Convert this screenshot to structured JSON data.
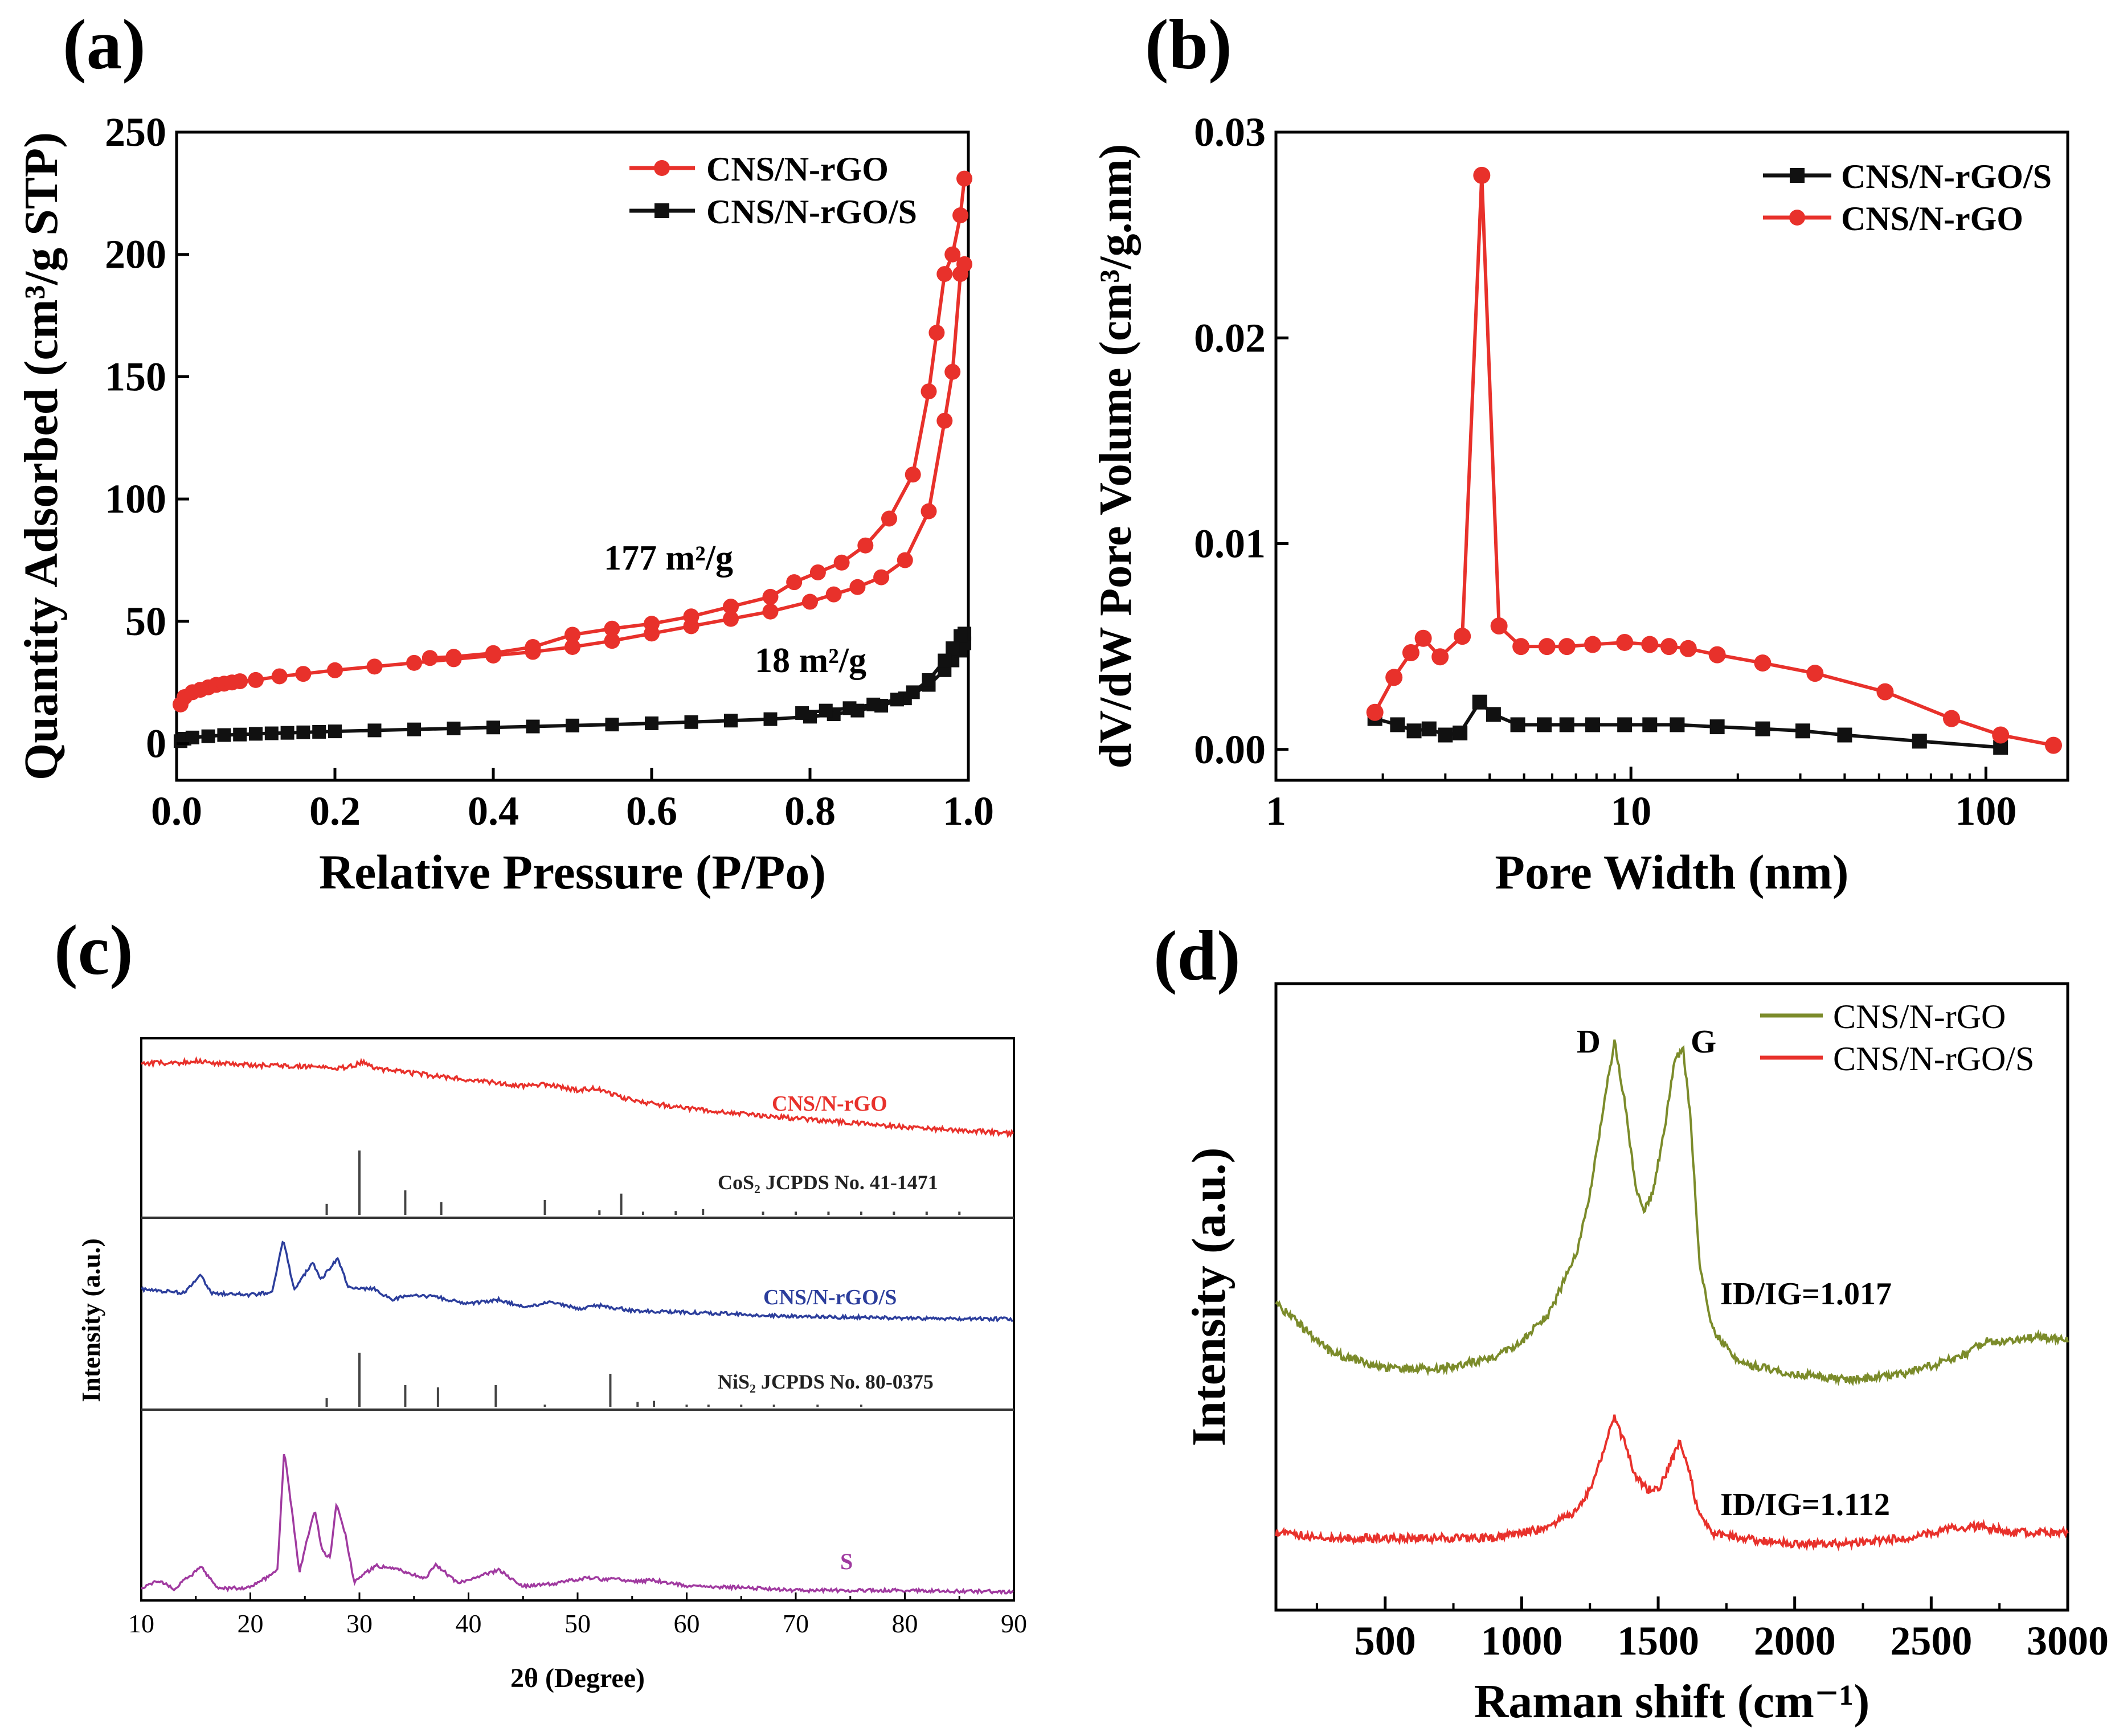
{
  "chart_data": [
    {
      "panel_label": "(a)",
      "type": "line",
      "xlabel": "Relative Pressure (P/Po)",
      "ylabel": "Quantity Adsorbed (cm³/g STP)",
      "xlim": [
        0,
        1.0
      ],
      "ylim": [
        -15,
        250
      ],
      "xticks": [
        "0.0",
        "0.2",
        "0.4",
        "0.6",
        "0.8",
        "1.0"
      ],
      "yticks": [
        "0",
        "50",
        "100",
        "150",
        "200",
        "250"
      ],
      "legend": [
        "CNS/N-rGO",
        "CNS/N-rGO/S"
      ],
      "annotations": [
        "177 m²/g",
        "18 m²/g"
      ],
      "series": [
        {
          "name": "CNS/N-rGO",
          "color": "#e8312b",
          "marker": "circle",
          "x": [
            0.005,
            0.01,
            0.02,
            0.03,
            0.04,
            0.05,
            0.06,
            0.07,
            0.08,
            0.1,
            0.13,
            0.16,
            0.2,
            0.25,
            0.3,
            0.35,
            0.4,
            0.45,
            0.5,
            0.55,
            0.6,
            0.65,
            0.7,
            0.75,
            0.8,
            0.83,
            0.86,
            0.89,
            0.92,
            0.95,
            0.97,
            0.98,
            0.99,
            0.995
          ],
          "y": [
            16,
            19,
            21,
            22,
            23,
            24,
            24.5,
            25,
            25.5,
            26,
            27.5,
            28.5,
            30,
            31.5,
            33,
            34.5,
            36,
            37.5,
            39.5,
            42,
            45,
            48,
            51,
            54,
            58,
            61,
            64,
            68,
            75,
            95,
            132,
            152,
            192,
            196
          ]
        },
        {
          "name": "CNS/N-rGO desorption",
          "color": "#e8312b",
          "marker": "circle",
          "x": [
            0.995,
            0.99,
            0.98,
            0.97,
            0.96,
            0.95,
            0.93,
            0.9,
            0.87,
            0.84,
            0.81,
            0.78,
            0.75,
            0.7,
            0.65,
            0.6,
            0.55,
            0.5,
            0.45,
            0.4,
            0.35,
            0.32
          ],
          "y": [
            231,
            216,
            200,
            192,
            168,
            144,
            110,
            92,
            81,
            74,
            70,
            66,
            60,
            56,
            52,
            49,
            47,
            44.5,
            39.5,
            37,
            35.5,
            35
          ]
        },
        {
          "name": "CNS/N-rGO/S",
          "color": "#111111",
          "marker": "square",
          "x": [
            0.005,
            0.01,
            0.02,
            0.04,
            0.06,
            0.08,
            0.1,
            0.12,
            0.14,
            0.16,
            0.18,
            0.2,
            0.25,
            0.3,
            0.35,
            0.4,
            0.45,
            0.5,
            0.55,
            0.6,
            0.65,
            0.7,
            0.75,
            0.8,
            0.83,
            0.86,
            0.89,
            0.92,
            0.95,
            0.97,
            0.98,
            0.99,
            0.995
          ],
          "y": [
            1,
            2,
            2.5,
            3,
            3.5,
            3.7,
            4,
            4.2,
            4.4,
            4.6,
            4.8,
            5,
            5.4,
            5.8,
            6.2,
            6.6,
            7,
            7.4,
            7.8,
            8.3,
            8.8,
            9.4,
            10,
            11,
            12,
            13.5,
            15.5,
            18.5,
            24,
            30,
            34,
            38,
            41
          ]
        },
        {
          "name": "CNS/N-rGO/S desorption",
          "color": "#111111",
          "marker": "square",
          "x": [
            0.995,
            0.99,
            0.98,
            0.97,
            0.95,
            0.93,
            0.91,
            0.88,
            0.85,
            0.82,
            0.79
          ],
          "y": [
            45,
            44,
            39,
            34,
            26,
            21,
            18,
            16,
            14.5,
            13.5,
            12.5
          ]
        }
      ]
    },
    {
      "panel_label": "(b)",
      "type": "line",
      "xscale": "log",
      "xlabel": "Pore Width (nm)",
      "ylabel": "dV/dW Pore Volume (cm³/g.nm)",
      "xlim": [
        1,
        170
      ],
      "ylim": [
        -0.0015,
        0.03
      ],
      "xticks": [
        "1",
        "10",
        "100"
      ],
      "yticks": [
        "0.00",
        "0.01",
        "0.02",
        "0.03"
      ],
      "legend": [
        "CNS/N-rGO/S",
        "CNS/N-rGO"
      ],
      "series": [
        {
          "name": "CNS/N-rGO/S",
          "color": "#111111",
          "marker": "square",
          "x": [
            1.9,
            2.2,
            2.45,
            2.7,
            3.0,
            3.3,
            3.75,
            4.1,
            4.8,
            5.7,
            6.6,
            7.8,
            9.6,
            11.3,
            13.5,
            17.5,
            23.5,
            30.5,
            40,
            65,
            110
          ],
          "y": [
            0.0015,
            0.0012,
            0.0009,
            0.001,
            0.0007,
            0.0008,
            0.0023,
            0.0017,
            0.0012,
            0.0012,
            0.0012,
            0.0012,
            0.0012,
            0.0012,
            0.0012,
            0.0011,
            0.001,
            0.0009,
            0.0007,
            0.0004,
            0.0001
          ]
        },
        {
          "name": "CNS/N-rGO",
          "color": "#e8312b",
          "marker": "circle",
          "x": [
            1.9,
            2.15,
            2.4,
            2.6,
            2.9,
            3.35,
            3.8,
            4.25,
            4.9,
            5.8,
            6.6,
            7.8,
            9.6,
            11.3,
            12.8,
            14.5,
            17.5,
            23.5,
            33,
            52,
            80,
            110,
            155
          ],
          "y": [
            0.0018,
            0.0035,
            0.0047,
            0.0054,
            0.0045,
            0.0055,
            0.0279,
            0.006,
            0.005,
            0.005,
            0.005,
            0.0051,
            0.0052,
            0.0051,
            0.005,
            0.0049,
            0.0046,
            0.0042,
            0.0037,
            0.0028,
            0.0015,
            0.0007,
            0.0002
          ]
        }
      ]
    },
    {
      "panel_label": "(c)",
      "type": "line",
      "xlabel": "2θ (Degree)",
      "ylabel": "Intensity (a.u.)",
      "xlim": [
        10,
        90
      ],
      "xticks": [
        "10",
        "20",
        "30",
        "40",
        "50",
        "60",
        "70",
        "80",
        "90"
      ],
      "series_labels": [
        {
          "text": "CNS/N-rGO",
          "color": "#e8312b"
        },
        {
          "text": "CoS₂ JCPDS No. 41-1471",
          "color": "#222222"
        },
        {
          "text": "CNS/N-rGO/S",
          "color": "#2c3e9c"
        },
        {
          "text": "NiS₂ JCPDS No. 80-0375",
          "color": "#222222"
        },
        {
          "text": "S",
          "color": "#a03aa0"
        }
      ],
      "series": [
        {
          "name": "CNS/N-rGO",
          "color": "#e8312b",
          "x": [
            10,
            13,
            15,
            17,
            20,
            23,
            26,
            28,
            29.5,
            30.2,
            31.5,
            35,
            40,
            45,
            47.5,
            50,
            51.5,
            52.5,
            55,
            60,
            70,
            80,
            90
          ],
          "y": [
            0.9,
            0.9,
            0.92,
            0.9,
            0.88,
            0.87,
            0.86,
            0.84,
            0.87,
            0.91,
            0.84,
            0.79,
            0.72,
            0.66,
            0.67,
            0.61,
            0.63,
            0.6,
            0.5,
            0.42,
            0.31,
            0.22,
            0.15
          ]
        },
        {
          "name": "CoS2 JCPDS No. 41-1471",
          "color": "#444444",
          "type": "stick",
          "x": [
            27,
            30,
            34.2,
            37.5,
            47,
            52,
            54,
            56,
            59,
            61.5,
            67,
            70,
            73,
            76,
            79,
            82,
            85
          ],
          "y": [
            0.17,
            1.0,
            0.38,
            0.2,
            0.23,
            0.07,
            0.33,
            0.05,
            0.06,
            0.09,
            0.05,
            0.05,
            0.05,
            0.05,
            0.05,
            0.05,
            0.05
          ]
        },
        {
          "name": "CNS/N-rGO/S",
          "color": "#2c3e9c",
          "x": [
            10,
            14,
            15.4,
            16.5,
            20,
            22,
            23,
            24,
            25.7,
            26.5,
            27.3,
            28,
            29,
            31.5,
            33,
            34.2,
            37,
            40,
            42.8,
            45,
            47.5,
            50,
            52,
            55,
            60,
            70,
            80,
            90
          ],
          "y": [
            0.48,
            0.44,
            0.62,
            0.44,
            0.42,
            0.45,
            1.0,
            0.48,
            0.75,
            0.58,
            0.7,
            0.8,
            0.5,
            0.48,
            0.36,
            0.42,
            0.4,
            0.33,
            0.37,
            0.3,
            0.34,
            0.28,
            0.31,
            0.26,
            0.24,
            0.2,
            0.18,
            0.17
          ]
        },
        {
          "name": "NiS2 JCPDS No. 80-0375",
          "color": "#444444",
          "type": "stick",
          "x": [
            27,
            30,
            34.2,
            37.2,
            42.5,
            47,
            53,
            55.5,
            57,
            60,
            62,
            65,
            68,
            72,
            76
          ],
          "y": [
            0.16,
            1.0,
            0.4,
            0.36,
            0.4,
            0.04,
            0.61,
            0.09,
            0.11,
            0.04,
            0.04,
            0.04,
            0.04,
            0.04,
            0.04
          ]
        },
        {
          "name": "S",
          "color": "#a03aa0",
          "x": [
            10,
            11.5,
            13,
            15.5,
            17,
            20,
            21.8,
            22.5,
            23.1,
            24.5,
            25.9,
            26.6,
            27.3,
            27.9,
            28.7,
            29.5,
            31.5,
            34.2,
            36,
            37,
            39,
            42.8,
            45,
            48,
            51.3,
            52.5,
            53.5,
            55,
            57,
            60,
            65,
            70,
            80,
            90
          ],
          "y": [
            0.05,
            0.1,
            0.04,
            0.19,
            0.04,
            0.05,
            0.13,
            0.18,
            1.0,
            0.16,
            0.59,
            0.3,
            0.25,
            0.63,
            0.42,
            0.09,
            0.2,
            0.16,
            0.11,
            0.21,
            0.08,
            0.17,
            0.06,
            0.08,
            0.12,
            0.1,
            0.11,
            0.09,
            0.1,
            0.06,
            0.05,
            0.03,
            0.03,
            0.02
          ]
        }
      ]
    },
    {
      "panel_label": "(d)",
      "type": "line",
      "xlabel": "Raman shift (cm⁻¹)",
      "ylabel": "Intensity (a.u.)",
      "xlim": [
        100,
        3000
      ],
      "xticks": [
        "500",
        "1000",
        "1500",
        "2000",
        "2500",
        "3000"
      ],
      "legend": [
        "CNS/N-rGO",
        "CNS/N-rGO/S"
      ],
      "peak_labels": [
        "D",
        "G"
      ],
      "ratios": [
        "ID/IG=1.017",
        "ID/IG=1.112"
      ],
      "series": [
        {
          "name": "CNS/N-rGO",
          "color": "#7b8b2a",
          "x": [
            100,
            300,
            500,
            700,
            900,
            1000,
            1100,
            1200,
            1250,
            1300,
            1340,
            1380,
            1420,
            1450,
            1480,
            1520,
            1560,
            1590,
            1620,
            1650,
            1700,
            1800,
            2000,
            2200,
            2400,
            2600,
            2700,
            2800,
            2900,
            3000
          ],
          "y": [
            0.52,
            0.43,
            0.4,
            0.4,
            0.42,
            0.45,
            0.5,
            0.61,
            0.72,
            0.88,
            1.0,
            0.88,
            0.72,
            0.69,
            0.72,
            0.83,
            0.96,
            0.99,
            0.85,
            0.6,
            0.47,
            0.41,
            0.39,
            0.38,
            0.39,
            0.42,
            0.45,
            0.45,
            0.46,
            0.45
          ]
        },
        {
          "name": "CNS/N-rGO/S",
          "color": "#e8312b",
          "x": [
            100,
            300,
            500,
            700,
            900,
            1000,
            1100,
            1200,
            1250,
            1300,
            1340,
            1380,
            1420,
            1460,
            1500,
            1540,
            1580,
            1610,
            1650,
            1700,
            1800,
            2000,
            2200,
            2400,
            2600,
            2700,
            2800,
            2900,
            3000
          ],
          "y": [
            0.1,
            0.09,
            0.09,
            0.09,
            0.09,
            0.1,
            0.11,
            0.14,
            0.18,
            0.25,
            0.31,
            0.26,
            0.2,
            0.18,
            0.18,
            0.22,
            0.27,
            0.22,
            0.13,
            0.1,
            0.09,
            0.08,
            0.08,
            0.09,
            0.11,
            0.11,
            0.1,
            0.1,
            0.1
          ]
        }
      ]
    }
  ]
}
